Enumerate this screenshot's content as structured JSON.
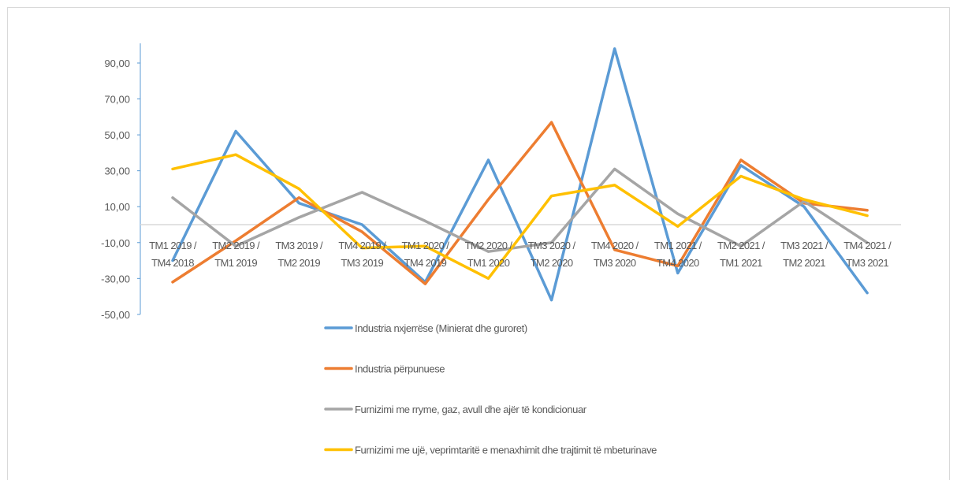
{
  "chart_data": {
    "type": "line",
    "title": "",
    "xlabel": "",
    "ylabel": "",
    "ylim": [
      -50,
      100
    ],
    "y_ticks": [
      "90,00",
      "70,00",
      "50,00",
      "30,00",
      "10,00",
      "-10,00",
      "-30,00",
      "-50,00"
    ],
    "y_tick_values": [
      90,
      70,
      50,
      30,
      10,
      -10,
      -30,
      -50
    ],
    "grid": false,
    "legend_position": "bottom",
    "categories": [
      [
        "TM1 2019 /",
        "TM4 2018"
      ],
      [
        "TM2 2019 /",
        "TM1 2019"
      ],
      [
        "TM3 2019 /",
        "TM2 2019"
      ],
      [
        "TM4 2019 /",
        "TM3 2019"
      ],
      [
        "TM1 2020 /",
        "TM4 2019"
      ],
      [
        "TM2 2020 /",
        "TM1 2020"
      ],
      [
        "TM3 2020 /",
        "TM2 2020"
      ],
      [
        "TM4 2020 /",
        "TM3 2020"
      ],
      [
        "TM1 2021 /",
        "TM4 2020"
      ],
      [
        "TM2 2021 /",
        "TM1 2021"
      ],
      [
        "TM3 2021 /",
        "TM2 2021"
      ],
      [
        "TM4 2021 /",
        "TM3 2021"
      ]
    ],
    "series": [
      {
        "name": "Industria nxjerrëse (Minierat dhe guroret)",
        "color": "#5b9bd5",
        "values": [
          -20,
          52,
          12,
          0,
          -32,
          36,
          -42,
          98,
          -27,
          33,
          10,
          -38
        ]
      },
      {
        "name": "Industria përpunuese",
        "color": "#ed7d31",
        "values": [
          -32,
          -9,
          15,
          -4,
          -33,
          14,
          57,
          -14,
          -23,
          36,
          12,
          8
        ]
      },
      {
        "name": "Furnizimi me rryme, gaz, avull dhe ajër të kondicionuar",
        "color": "#a5a5a5",
        "values": [
          15,
          -12,
          4,
          18,
          2,
          -15,
          -10,
          31,
          6,
          -12,
          13,
          -10
        ]
      },
      {
        "name": "Furnizimi me ujë, veprimtaritë e menaxhimit dhe trajtimit të mbeturinave",
        "color": "#ffc000",
        "values": [
          31,
          39,
          20,
          -13,
          -12,
          -30,
          16,
          22,
          -1,
          27,
          14,
          5
        ]
      }
    ]
  }
}
